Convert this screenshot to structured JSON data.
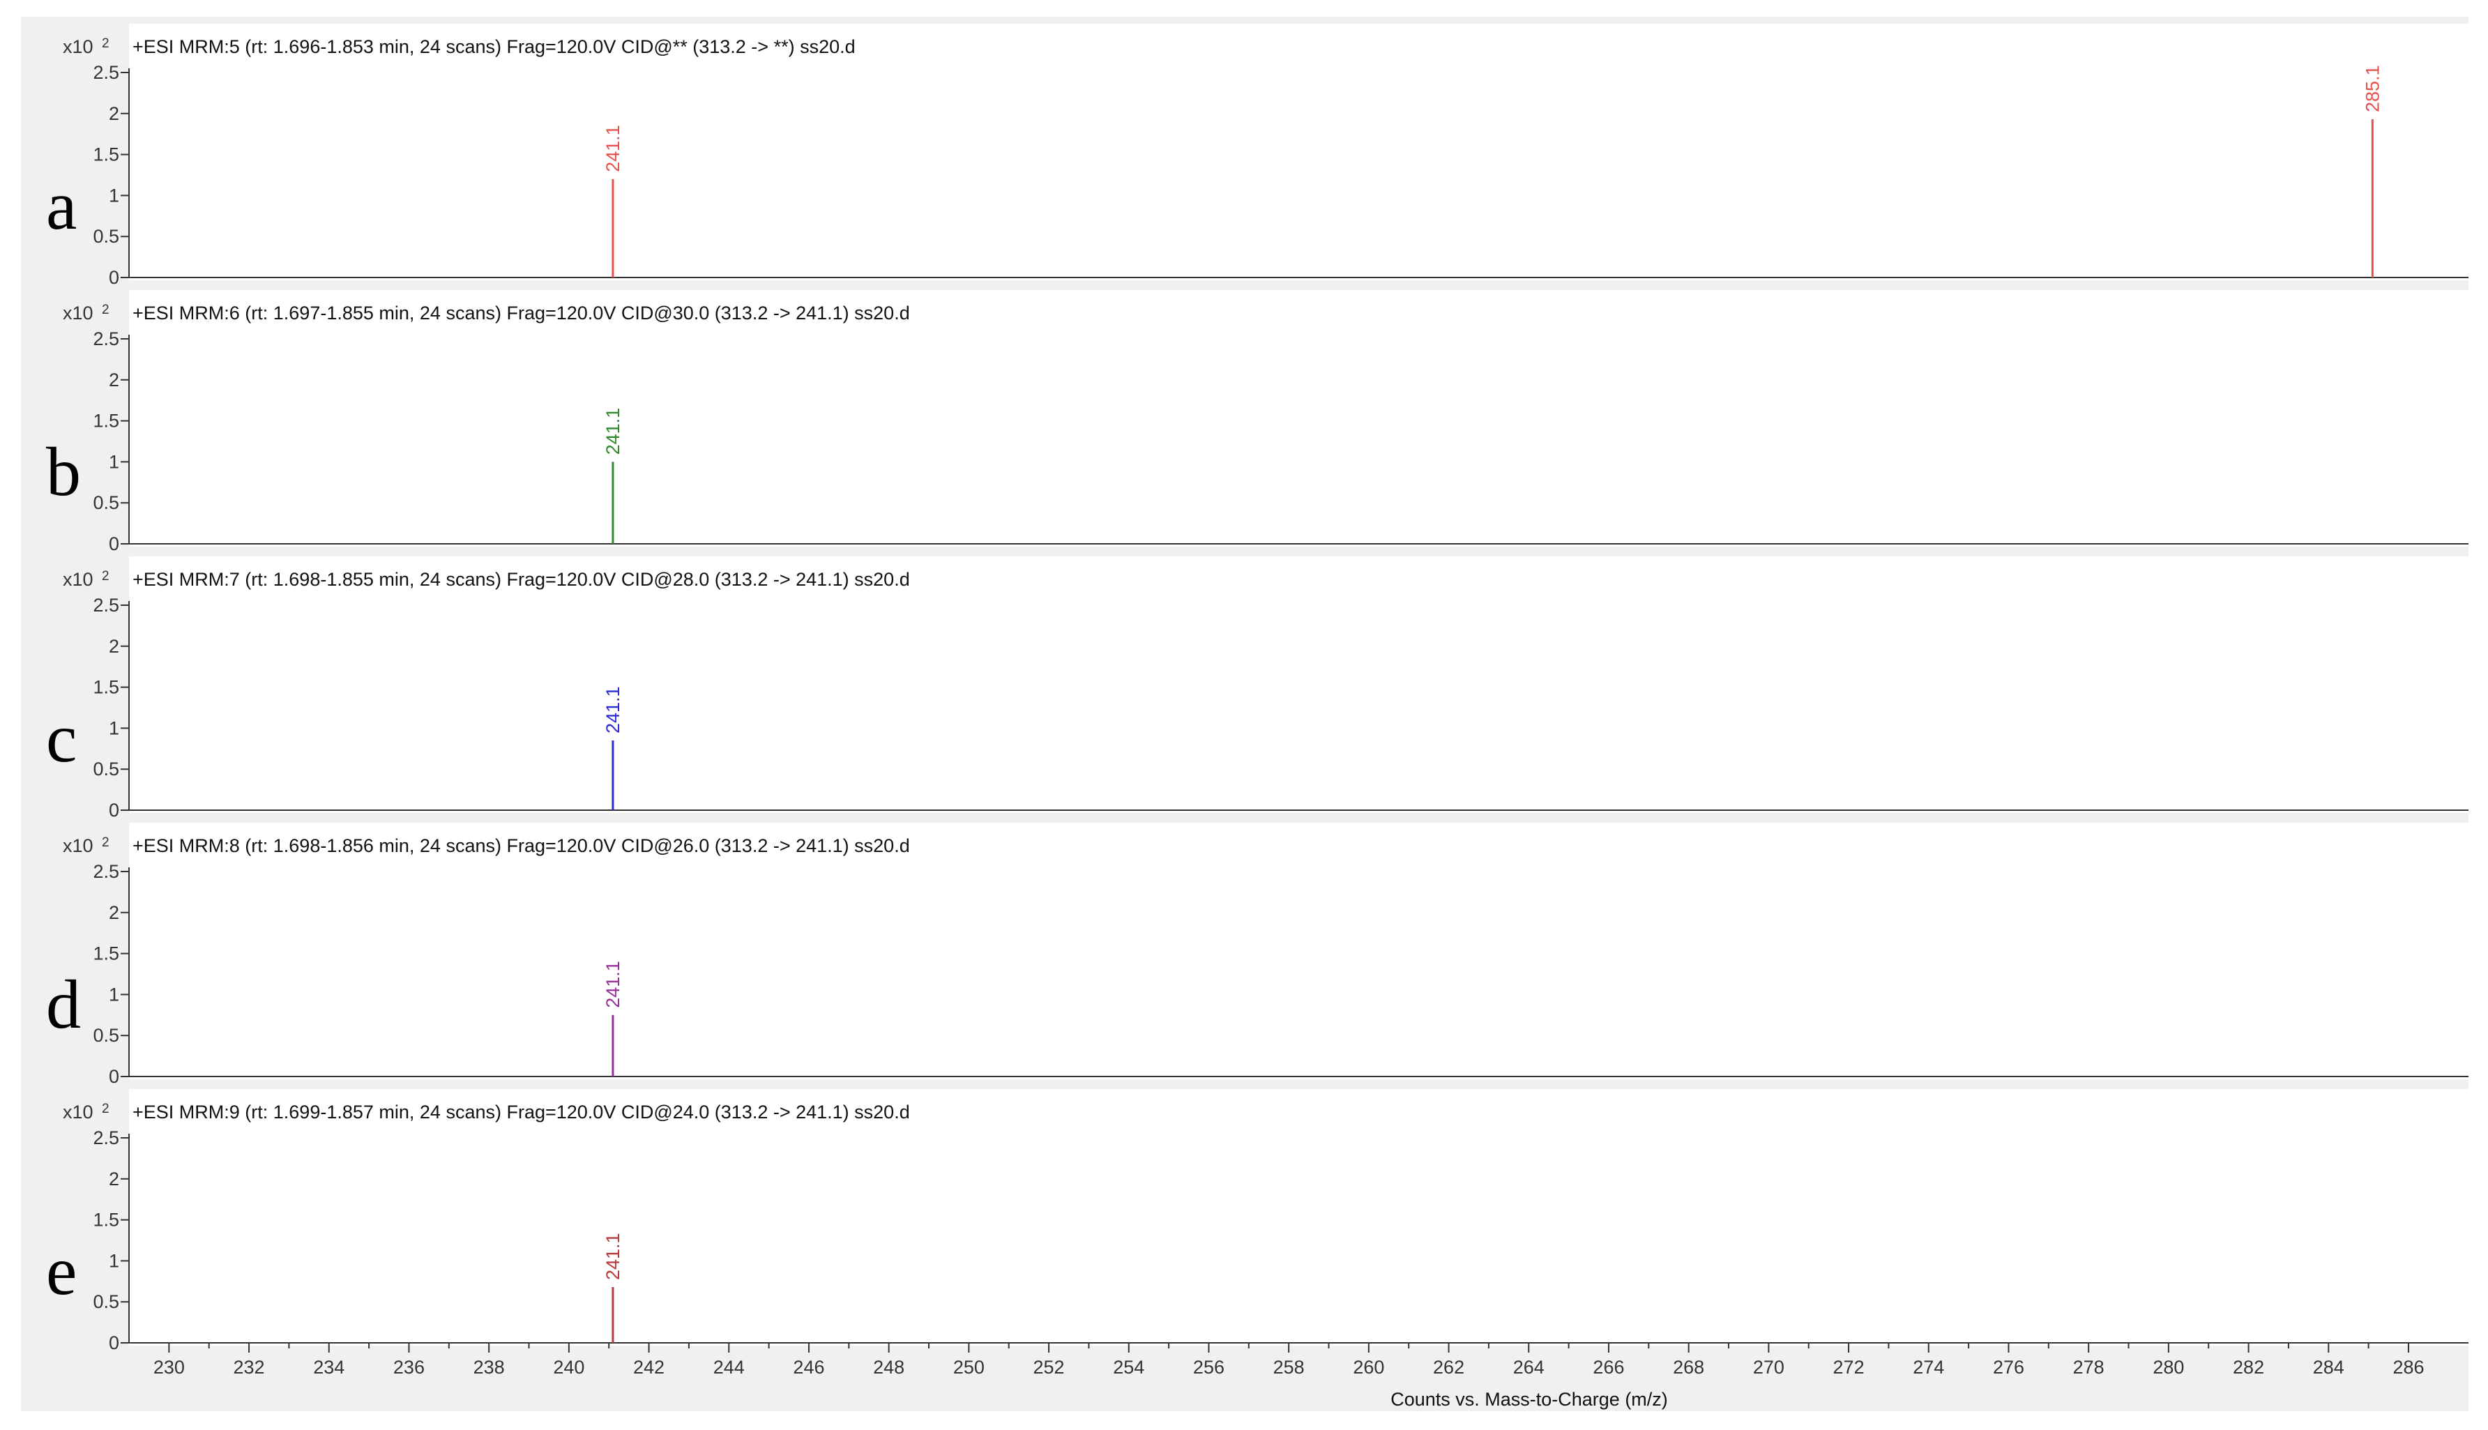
{
  "chart_data": {
    "type": "bar",
    "xlabel": "Counts vs. Mass-to-Charge (m/z)",
    "xlim": [
      229,
      287.5
    ],
    "x_ticks": [
      230,
      232,
      234,
      236,
      238,
      240,
      242,
      244,
      246,
      248,
      250,
      252,
      254,
      256,
      258,
      260,
      262,
      264,
      266,
      268,
      270,
      272,
      274,
      276,
      278,
      280,
      282,
      284,
      286
    ],
    "ylim": [
      0,
      2.5
    ],
    "y_ticks": [
      0,
      0.5,
      1,
      1.5,
      2,
      2.5
    ],
    "y_tick_labels": [
      "0",
      "0.5",
      "1",
      "1.5",
      "2",
      "2.5"
    ],
    "y_scale_label": "x10",
    "y_scale_exponent": "2",
    "grid": false,
    "panels": [
      {
        "letter": "a",
        "title": "+ESI MRM:5 (rt: 1.696-1.853 min, 24 scans) Frag=120.0V CID@** (313.2 -> **) ss20.d",
        "color": "#e8504e",
        "peaks": [
          {
            "mz": 241.1,
            "intensity": 1.2,
            "label": "241.1"
          },
          {
            "mz": 285.1,
            "intensity": 1.93,
            "label": "285.1"
          }
        ]
      },
      {
        "letter": "b",
        "title": "+ESI MRM:6 (rt: 1.697-1.855 min, 24 scans) Frag=120.0V CID@30.0 (313.2 -> 241.1) ss20.d",
        "color": "#2e8b2e",
        "peaks": [
          {
            "mz": 241.1,
            "intensity": 1.0,
            "label": "241.1"
          }
        ]
      },
      {
        "letter": "c",
        "title": "+ESI MRM:7 (rt: 1.698-1.855 min, 24 scans) Frag=120.0V CID@28.0 (313.2 -> 241.1) ss20.d",
        "color": "#2a2ad6",
        "peaks": [
          {
            "mz": 241.1,
            "intensity": 0.85,
            "label": "241.1"
          }
        ]
      },
      {
        "letter": "d",
        "title": "+ESI MRM:8 (rt: 1.698-1.856 min, 24 scans) Frag=120.0V CID@26.0 (313.2 -> 241.1) ss20.d",
        "color": "#9a2f9a",
        "peaks": [
          {
            "mz": 241.1,
            "intensity": 0.75,
            "label": "241.1"
          }
        ]
      },
      {
        "letter": "e",
        "title": "+ESI MRM:9 (rt: 1.699-1.857 min, 24 scans) Frag=120.0V CID@24.0 (313.2 -> 241.1) ss20.d",
        "color": "#b83a3a",
        "peaks": [
          {
            "mz": 241.1,
            "intensity": 0.68,
            "label": "241.1"
          }
        ]
      }
    ]
  }
}
